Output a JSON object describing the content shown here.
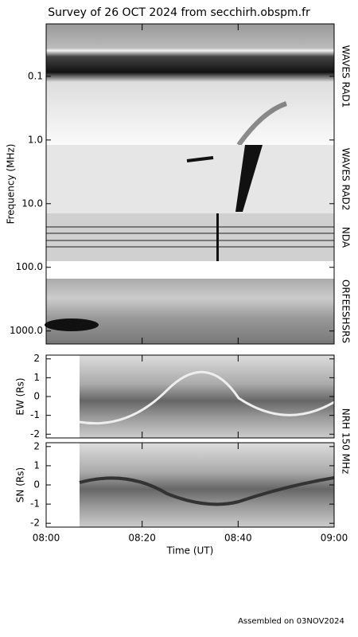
{
  "chart_data": {
    "type": "spectrogram",
    "title": "Survey of 26 OCT 2024 from secchirh.obspm.fr",
    "xlabel": "Time (UT)",
    "xlim": [
      "08:00",
      "09:00"
    ],
    "xticks": [
      "08:00",
      "08:20",
      "08:40",
      "09:00"
    ],
    "frequency": {
      "ylabel": "Frequency (MHz)",
      "log": true,
      "ylim": [
        0.015,
        1600
      ],
      "yticks": [
        0.1,
        {
          "value": 1,
          "label": "1.0"
        },
        {
          "value": 10,
          "label": "10.0"
        },
        {
          "value": 100,
          "label": "100.0"
        },
        {
          "value": 1000,
          "label": "1000.0"
        }
      ],
      "instruments": [
        "WAVES RAD1",
        "WAVES RAD2",
        "NDA",
        "ORFEESHSRS"
      ]
    },
    "nrh": {
      "instrument": "NRH 150 MHz",
      "panels": [
        {
          "ylabel": "EW (Rs)",
          "ylim": [
            -2.2,
            2.2
          ],
          "yticks": [
            -2,
            -1,
            0,
            1,
            2
          ]
        },
        {
          "ylabel": "SN (Rs)",
          "ylim": [
            -2.2,
            2.2
          ],
          "yticks": [
            -2,
            -1,
            0,
            1,
            2
          ]
        }
      ]
    },
    "footer": "Assembled on 03NOV2024"
  }
}
